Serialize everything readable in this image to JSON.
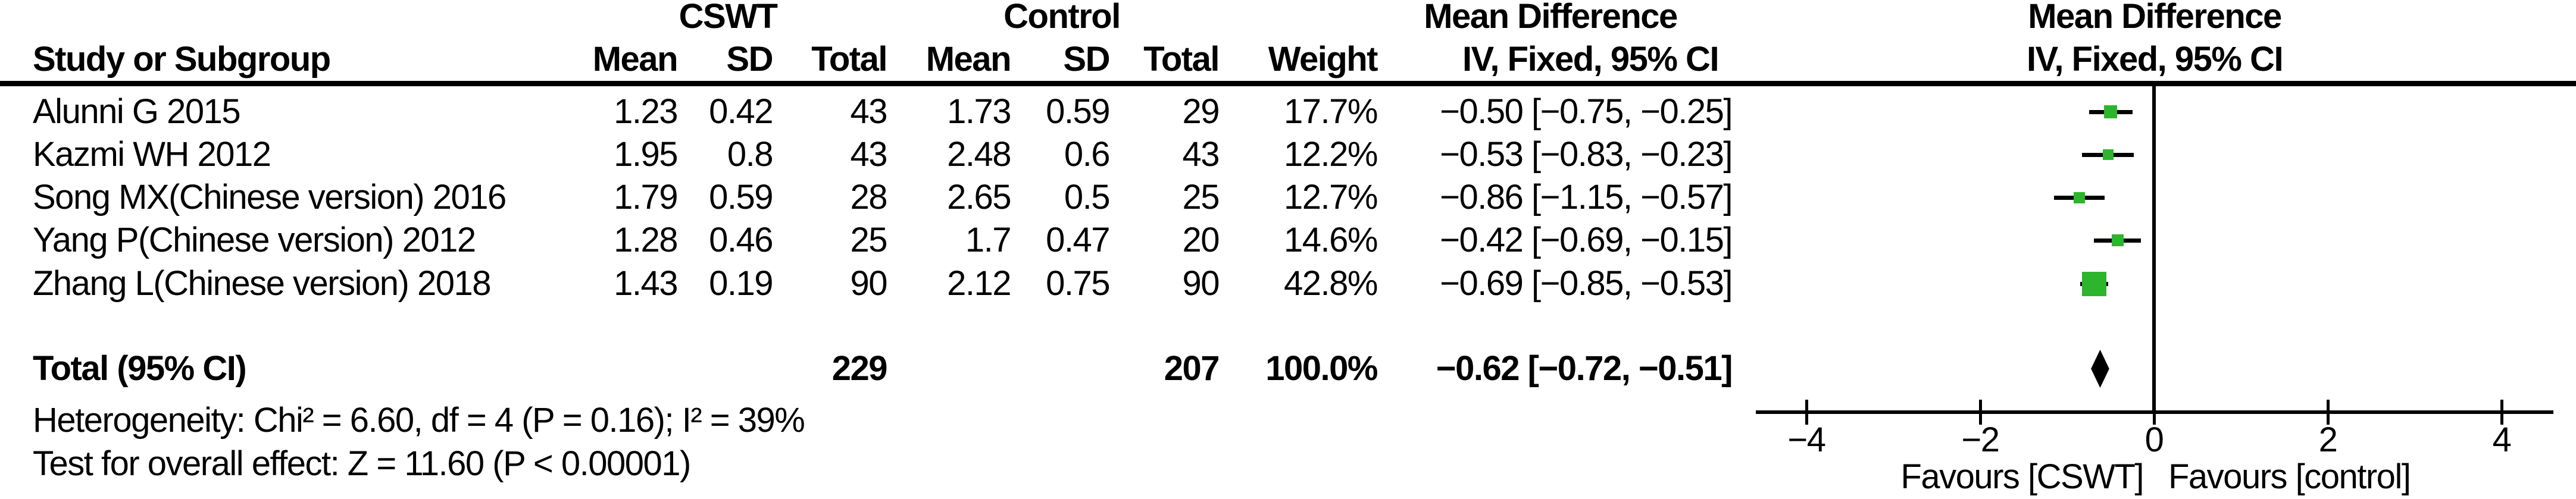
{
  "table": {
    "group_headers": {
      "cswt": "CSWT",
      "control": "Control",
      "mean_difference": "Mean Difference"
    },
    "column_headers": {
      "study": "Study or Subgroup",
      "cswt_mean": "Mean",
      "cswt_sd": "SD",
      "cswt_total": "Total",
      "ctrl_mean": "Mean",
      "ctrl_sd": "SD",
      "ctrl_total": "Total",
      "weight": "Weight",
      "iv_fixed": "IV, Fixed, 95% CI"
    },
    "rows": [
      {
        "study": "Alunni G 2015",
        "cswt_mean": "1.23",
        "cswt_sd": "0.42",
        "cswt_total": "43",
        "ctrl_mean": "1.73",
        "ctrl_sd": "0.59",
        "ctrl_total": "29",
        "weight": "17.7%",
        "md_ci": "−0.50 [−0.75, −0.25]"
      },
      {
        "study": "Kazmi WH 2012",
        "cswt_mean": "1.95",
        "cswt_sd": "0.8",
        "cswt_total": "43",
        "ctrl_mean": "2.48",
        "ctrl_sd": "0.6",
        "ctrl_total": "43",
        "weight": "12.2%",
        "md_ci": "−0.53 [−0.83, −0.23]"
      },
      {
        "study": "Song MX(Chinese version) 2016",
        "cswt_mean": "1.79",
        "cswt_sd": "0.59",
        "cswt_total": "28",
        "ctrl_mean": "2.65",
        "ctrl_sd": "0.5",
        "ctrl_total": "25",
        "weight": "12.7%",
        "md_ci": "−0.86 [−1.15, −0.57]"
      },
      {
        "study": "Yang P(Chinese version) 2012",
        "cswt_mean": "1.28",
        "cswt_sd": "0.46",
        "cswt_total": "25",
        "ctrl_mean": "1.7",
        "ctrl_sd": "0.47",
        "ctrl_total": "20",
        "weight": "14.6%",
        "md_ci": "−0.42 [−0.69, −0.15]"
      },
      {
        "study": "Zhang L(Chinese version) 2018",
        "cswt_mean": "1.43",
        "cswt_sd": "0.19",
        "cswt_total": "90",
        "ctrl_mean": "2.12",
        "ctrl_sd": "0.75",
        "ctrl_total": "90",
        "weight": "42.8%",
        "md_ci": "−0.69 [−0.85, −0.53]"
      }
    ],
    "total_row": {
      "label": "Total (95% CI)",
      "cswt_total": "229",
      "ctrl_total": "207",
      "weight": "100.0%",
      "md_ci": "−0.62 [−0.72, −0.51]"
    },
    "footer": {
      "heterogeneity": "Heterogeneity: Chi² = 6.60, df = 4 (P = 0.16); I² = 39%",
      "overall_effect": "Test for overall effect: Z = 11.60 (P < 0.00001)"
    }
  },
  "plot_header": {
    "line1": "Mean Difference",
    "line2": "IV, Fixed, 95% CI"
  },
  "chart_data": {
    "type": "forest",
    "effect_measure": "Mean Difference IV, Fixed, 95% CI",
    "x_ticks": [
      -4,
      -2,
      0,
      2,
      4
    ],
    "x_tick_labels": [
      "−4",
      "−2",
      "0",
      "2",
      "4"
    ],
    "x_range": [
      -4.6,
      4.6
    ],
    "favours_left": "Favours [CSWT]",
    "favours_right": "Favours [control]",
    "marker_color": "#2db52d",
    "studies": [
      {
        "name": "Alunni G 2015",
        "md": -0.5,
        "ci_low": -0.75,
        "ci_high": -0.25,
        "weight_pct": 17.7
      },
      {
        "name": "Kazmi WH 2012",
        "md": -0.53,
        "ci_low": -0.83,
        "ci_high": -0.23,
        "weight_pct": 12.2
      },
      {
        "name": "Song MX(Chinese version) 2016",
        "md": -0.86,
        "ci_low": -1.15,
        "ci_high": -0.57,
        "weight_pct": 12.7
      },
      {
        "name": "Yang P(Chinese version) 2012",
        "md": -0.42,
        "ci_low": -0.69,
        "ci_high": -0.15,
        "weight_pct": 14.6
      },
      {
        "name": "Zhang L(Chinese version) 2018",
        "md": -0.69,
        "ci_low": -0.85,
        "ci_high": -0.53,
        "weight_pct": 42.8
      }
    ],
    "total": {
      "label": "Total (95% CI)",
      "md": -0.62,
      "ci_low": -0.72,
      "ci_high": -0.51
    }
  }
}
